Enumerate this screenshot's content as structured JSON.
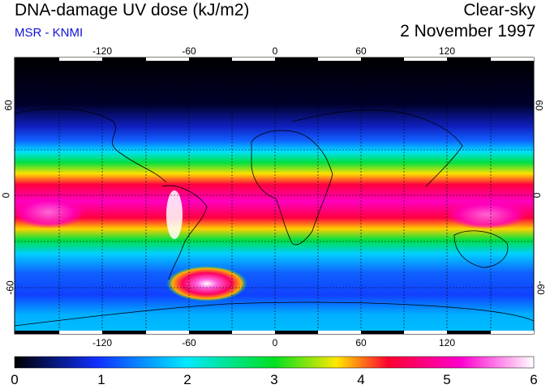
{
  "header": {
    "title": "DNA-damage UV dose (kJ/m2)",
    "subtitle": "MSR - KNMI",
    "condition": "Clear-sky",
    "date": "2 November 1997"
  },
  "axes": {
    "lon_ticks": [
      "-120",
      "-60",
      "0",
      "60",
      "120"
    ],
    "lat_ticks_left": [
      "60",
      "0",
      "-60"
    ],
    "lat_ticks_right": [
      "60",
      "0",
      "-60"
    ]
  },
  "colorbar": {
    "labels": [
      "0",
      "1",
      "2",
      "3",
      "4",
      "5",
      "6"
    ],
    "colors": [
      "#000000",
      "#1030ff",
      "#00e8ff",
      "#00e020",
      "#ffe800",
      "#ff0030",
      "#ff00d0",
      "#ffffff"
    ]
  },
  "map_colors": {
    "coastline": "#000000",
    "grid": "#000000"
  }
}
